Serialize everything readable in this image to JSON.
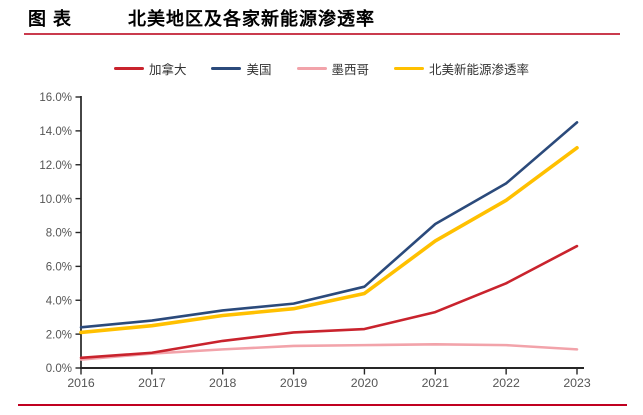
{
  "header": {
    "label": "图表",
    "title": "北美地区及各家新能源渗透率"
  },
  "rules": {
    "top_color": "#CA3B4E",
    "bottom_color": "#C00020"
  },
  "chart_data": {
    "type": "line",
    "title": "北美地区及各家新能源渗透率",
    "categories": [
      "2016",
      "2017",
      "2018",
      "2019",
      "2020",
      "2021",
      "2022",
      "2023"
    ],
    "series": [
      {
        "name": "加拿大",
        "color": "#C9232D",
        "thickness": 2.6,
        "values": [
          0.6,
          0.9,
          1.6,
          2.1,
          2.3,
          3.3,
          5.0,
          7.2
        ]
      },
      {
        "name": "美国",
        "color": "#2B4A7B",
        "thickness": 2.6,
        "values": [
          2.4,
          2.8,
          3.4,
          3.8,
          4.8,
          8.5,
          10.9,
          14.5
        ]
      },
      {
        "name": "墨西哥",
        "color": "#F2A3AA",
        "thickness": 2.6,
        "values": [
          0.5,
          0.85,
          1.1,
          1.3,
          1.35,
          1.4,
          1.35,
          1.1
        ]
      },
      {
        "name": "北美新能源渗透率",
        "color": "#FFC000",
        "thickness": 3.6,
        "values": [
          2.1,
          2.5,
          3.1,
          3.5,
          4.4,
          7.5,
          9.9,
          13.0
        ]
      }
    ],
    "ylim": [
      0,
      16
    ],
    "ytick_step": 2,
    "ytick_labels": [
      "0.0%",
      "2.0%",
      "4.0%",
      "6.0%",
      "8.0%",
      "10.0%",
      "12.0%",
      "14.0%",
      "16.0%"
    ],
    "grid": false,
    "legend_position": "top",
    "axis_color": "#262626",
    "tick_label_color": "#555555"
  }
}
